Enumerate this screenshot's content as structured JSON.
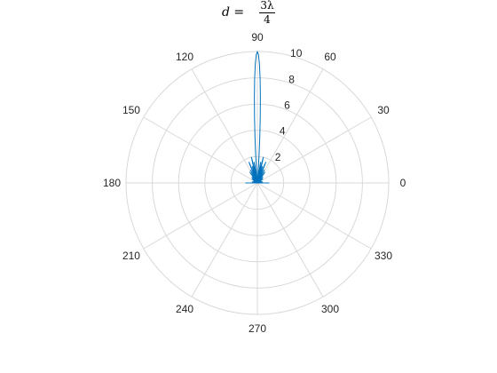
{
  "chart_data": {
    "type": "polar-line",
    "title": {
      "lhs": "d =",
      "numerator": "3λ",
      "denominator": "4"
    },
    "theta_unit": "degrees",
    "theta_ticks": [
      0,
      30,
      60,
      90,
      120,
      150,
      180,
      210,
      240,
      270,
      300,
      330
    ],
    "theta_tick_labels": [
      "0",
      "30",
      "60",
      "90",
      "120",
      "150",
      "180",
      "210",
      "240",
      "270",
      "300",
      "330"
    ],
    "r_lim": [
      0,
      10
    ],
    "r_ticks": [
      2,
      4,
      6,
      8,
      10
    ],
    "r_tick_labels": [
      "2",
      "4",
      "6",
      "8",
      "10"
    ],
    "grid": true,
    "colors": {
      "line": "#0072BD",
      "grid": "#d9d9d9",
      "text": "#262626"
    },
    "series": [
      {
        "main_lobe": {
          "center_deg": 90,
          "peak": 10,
          "half_width_deg": 5
        },
        "side_lobes": [
          {
            "theta": 12,
            "r": 0.4
          },
          {
            "theta": 24,
            "r": 0.3
          },
          {
            "theta": 36,
            "r": 0.5
          },
          {
            "theta": 46,
            "r": 0.6
          },
          {
            "theta": 55,
            "r": 1.0
          },
          {
            "theta": 62,
            "r": 1.1
          },
          {
            "theta": 68,
            "r": 1.7
          },
          {
            "theta": 73,
            "r": 1.3
          },
          {
            "theta": 77,
            "r": 2.0
          },
          {
            "theta": 81,
            "r": 1.6
          },
          {
            "theta": 99,
            "r": 1.6
          },
          {
            "theta": 103,
            "r": 2.0
          },
          {
            "theta": 107,
            "r": 1.3
          },
          {
            "theta": 112,
            "r": 1.7
          },
          {
            "theta": 118,
            "r": 1.1
          },
          {
            "theta": 125,
            "r": 1.0
          },
          {
            "theta": 134,
            "r": 0.6
          },
          {
            "theta": 144,
            "r": 0.5
          },
          {
            "theta": 156,
            "r": 0.3
          },
          {
            "theta": 168,
            "r": 0.4
          }
        ],
        "endpoint_r": 0.9
      }
    ]
  }
}
